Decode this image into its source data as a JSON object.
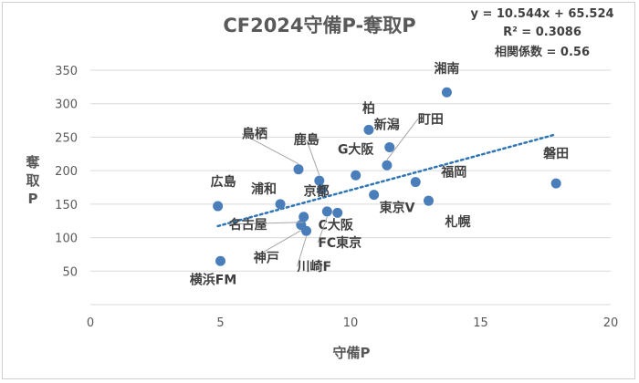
{
  "chart_data": {
    "type": "scatter",
    "title": "CF2024守備P-奪取P",
    "xlabel": "守備P",
    "ylabel": "奪取P",
    "xlim": [
      0,
      20
    ],
    "ylim": [
      0,
      350
    ],
    "x_ticks": [
      0,
      5,
      10,
      15,
      20
    ],
    "y_ticks": [
      50,
      100,
      150,
      200,
      250,
      300,
      350
    ],
    "grid": "horizontal",
    "marker_color": "#4A7EBB",
    "trendline": {
      "type": "linear",
      "color": "#2E75B6",
      "style": "dotted",
      "slope": 10.544,
      "intercept": 65.524,
      "x_range": [
        4.9,
        17.9
      ],
      "equation": "y = 10.544x + 65.524",
      "r2": "R² = 0.3086",
      "correlation": "相関係数 = 0.56"
    },
    "points": [
      {
        "name": "湘南",
        "x": 13.7,
        "y": 317
      },
      {
        "name": "柏",
        "x": 10.7,
        "y": 261
      },
      {
        "name": "新潟",
        "x": 11.5,
        "y": 235
      },
      {
        "name": "町田",
        "x": 11.4,
        "y": 208
      },
      {
        "name": "福岡",
        "x": 12.5,
        "y": 183
      },
      {
        "name": "磐田",
        "x": 17.9,
        "y": 181
      },
      {
        "name": "鹿島",
        "x": 8.8,
        "y": 185
      },
      {
        "name": "鳥栖",
        "x": 8.0,
        "y": 202
      },
      {
        "name": "G大阪",
        "x": 10.2,
        "y": 193
      },
      {
        "name": "京都",
        "x": 8.9,
        "y": 172
      },
      {
        "name": "広島",
        "x": 4.9,
        "y": 147
      },
      {
        "name": "浦和",
        "x": 7.3,
        "y": 150
      },
      {
        "name": "東京V",
        "x": 10.9,
        "y": 164
      },
      {
        "name": "札幌",
        "x": 13.0,
        "y": 155
      },
      {
        "name": "C大阪",
        "x": 9.5,
        "y": 137
      },
      {
        "name": "名古屋",
        "x": 8.2,
        "y": 131
      },
      {
        "name": "神戸",
        "x": 8.1,
        "y": 119
      },
      {
        "name": "川崎F",
        "x": 8.3,
        "y": 110
      },
      {
        "name": "FC東京",
        "x": 9.1,
        "y": 139
      },
      {
        "name": "横浜FM",
        "x": 5.0,
        "y": 65
      }
    ]
  }
}
